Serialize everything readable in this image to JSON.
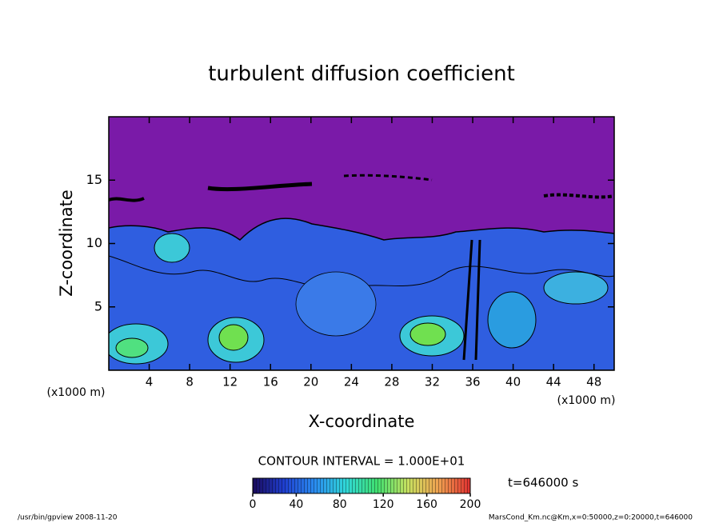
{
  "chart_data": {
    "type": "contour",
    "title": "turbulent diffusion coefficient",
    "x_label": "X-coordinate",
    "y_label": "Z-coordinate",
    "x_unit": "(x1000 m)",
    "xlim": [
      0,
      50
    ],
    "xticks": [
      4,
      8,
      12,
      16,
      20,
      24,
      28,
      32,
      36,
      40,
      44,
      48
    ],
    "ylim": [
      0,
      20
    ],
    "yticks": [
      5,
      10,
      15
    ],
    "contour_interval_label": "CONTOUR INTERVAL = 1.000E+01",
    "time_label": "t=646000 s",
    "colorbar": {
      "lim": [
        0,
        200
      ],
      "ticks": [
        0,
        40,
        80,
        120,
        160,
        200
      ],
      "colors": [
        "#1a0a5a",
        "#1f3fd0",
        "#2a8cf0",
        "#30d8d8",
        "#40e070",
        "#c8e060",
        "#f0a050",
        "#e03030"
      ]
    },
    "footer_left": "/usr/bin/gpview   2008-11-20",
    "footer_right": "MarsCond_Km.nc@Km,x=0:50000,z=0:20000,t=646000"
  }
}
